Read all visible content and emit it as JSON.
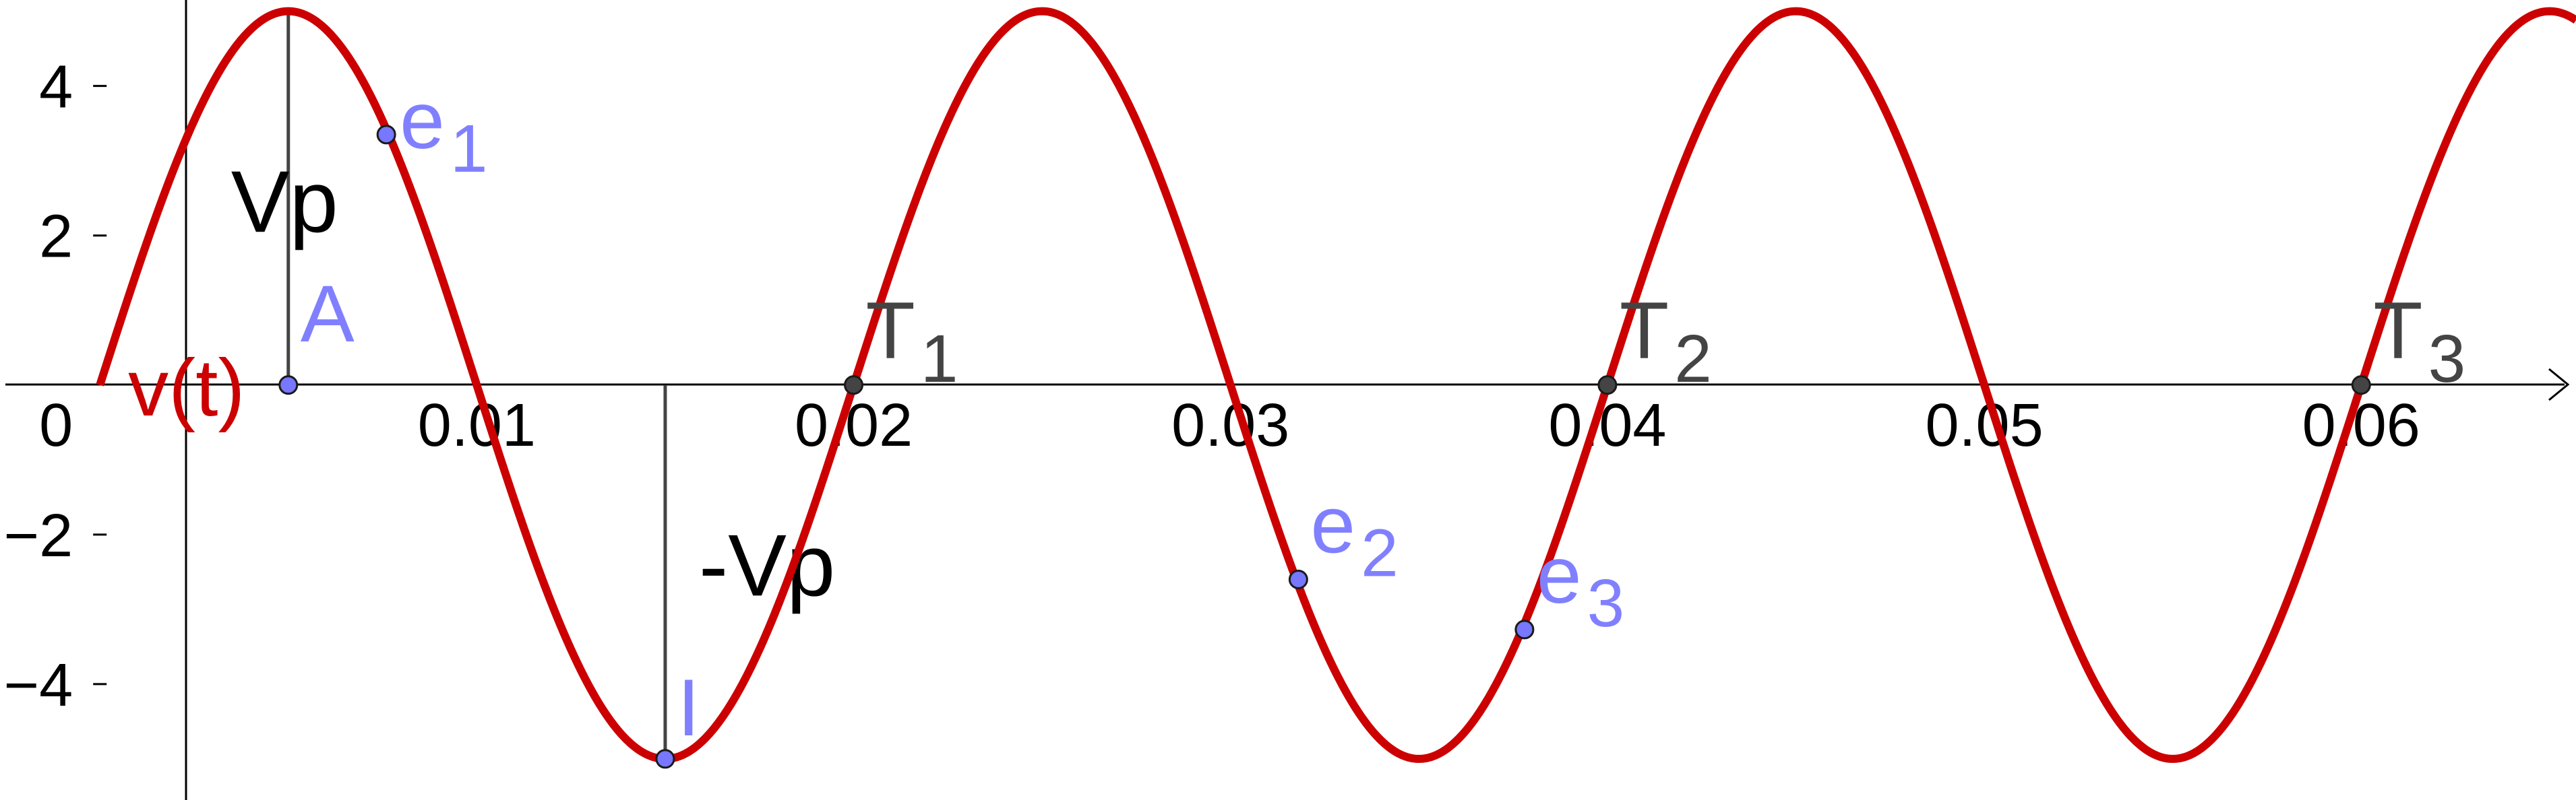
{
  "chart_data": {
    "type": "line",
    "title": "",
    "xlabel": "",
    "ylabel": "",
    "xlim": [
      -0.00265,
      0.0657
    ],
    "ylim": [
      -5.55,
      5.15
    ],
    "grid": false,
    "x_ticks": [
      {
        "value": 0,
        "label": "0"
      },
      {
        "value": 0.01,
        "label": "0.01"
      },
      {
        "value": 0.02,
        "label": "0.02"
      },
      {
        "value": 0.03,
        "label": "0.03"
      },
      {
        "value": 0.04,
        "label": "0.04"
      },
      {
        "value": 0.05,
        "label": "0.05"
      },
      {
        "value": 0.06,
        "label": "0.06"
      }
    ],
    "y_ticks": [
      {
        "value": 4,
        "label": "4"
      },
      {
        "value": 2,
        "label": "2"
      },
      {
        "value": -2,
        "label": "−2"
      },
      {
        "value": -4,
        "label": "−4"
      }
    ],
    "series": [
      {
        "name": "v(t)",
        "color": "#cc0000",
        "amplitude": 5,
        "frequency": 50,
        "x_range": [
          0,
          0.0657
        ]
      }
    ],
    "points": [
      {
        "name": "A",
        "x": 0.005,
        "y": 0,
        "color": "#8080ff"
      },
      {
        "name": "e",
        "sub": "1",
        "x": 0.0076,
        "y": 3.35,
        "color": "#8080ff"
      },
      {
        "name": "I",
        "x": 0.015,
        "y": -5,
        "color": "#8080ff"
      },
      {
        "name": "e",
        "sub": "2",
        "x": 0.0318,
        "y": -2.6,
        "color": "#8080ff"
      },
      {
        "name": "e",
        "sub": "3",
        "x": 0.0378,
        "y": -3.27,
        "color": "#8080ff"
      },
      {
        "name": "T",
        "sub": "1",
        "x": 0.02,
        "y": 0,
        "color": "#444444"
      },
      {
        "name": "T",
        "sub": "2",
        "x": 0.04,
        "y": 0,
        "color": "#444444"
      },
      {
        "name": "T",
        "sub": "3",
        "x": 0.06,
        "y": 0,
        "color": "#444444"
      }
    ],
    "segments": [
      {
        "name": "Vp",
        "x": 0.005,
        "y1": 0,
        "y2": 5
      },
      {
        "name": "-Vp",
        "x": 0.015,
        "y1": 0,
        "y2": -5
      }
    ]
  }
}
